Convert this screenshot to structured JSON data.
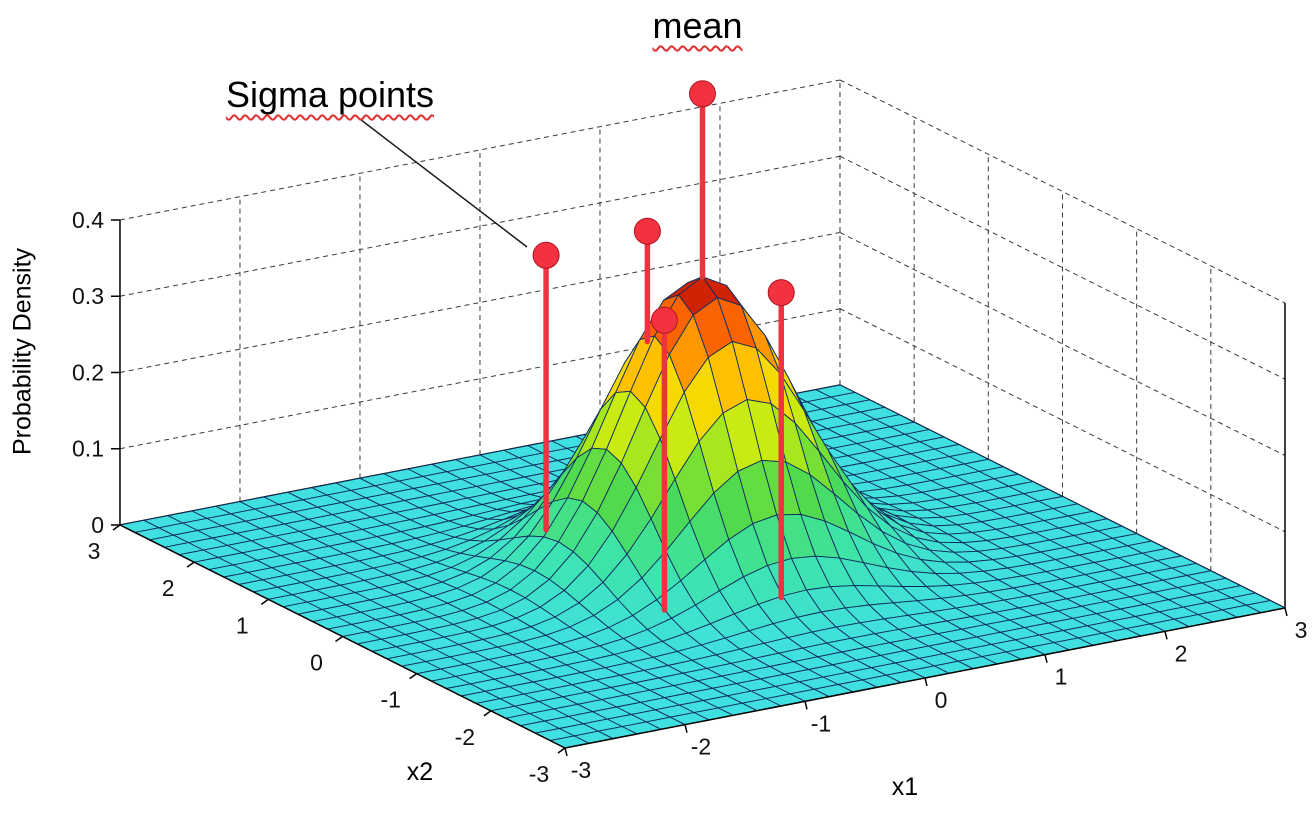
{
  "page": {
    "background": "#ffffff"
  },
  "chart_data": {
    "type": "surface",
    "xlabel": "x1",
    "ylabel": "x2",
    "zlabel": "Probability Density",
    "x_range": [
      -3,
      3
    ],
    "y_range": [
      -3,
      3
    ],
    "z_range": [
      0,
      0.4
    ],
    "x_ticks": [
      -3,
      -2,
      -1,
      0,
      1,
      2,
      3
    ],
    "y_ticks": [
      -3,
      -2,
      -1,
      0,
      1,
      2,
      3
    ],
    "z_ticks": [
      0,
      0.1,
      0.2,
      0.3,
      0.4
    ],
    "z_tick_labels": [
      "0",
      "0.1",
      "0.2",
      "0.3",
      "0.4"
    ],
    "grid_style": "dashed",
    "surface": {
      "function": "bivariate_gaussian",
      "mean": [
        0,
        0
      ],
      "sigma": 0.65,
      "peak": 0.38,
      "grid_step": 0.2,
      "edge_color": "#0f2d5c",
      "colormap": [
        [
          0.0,
          [
            64,
            224,
            224
          ]
        ],
        [
          0.18,
          [
            62,
            228,
            166
          ]
        ],
        [
          0.33,
          [
            74,
            217,
            84
          ]
        ],
        [
          0.47,
          [
            148,
            228,
            36
          ]
        ],
        [
          0.6,
          [
            236,
            240,
            4
          ]
        ],
        [
          0.73,
          [
            255,
            190,
            0
          ]
        ],
        [
          0.85,
          [
            255,
            116,
            0
          ]
        ],
        [
          0.93,
          [
            233,
            48,
            0
          ]
        ],
        [
          1.0,
          [
            158,
            10,
            10
          ]
        ]
      ]
    },
    "sigma_points": [
      {
        "name": "mean-point",
        "x": 0,
        "y": 0,
        "stem_top": 0.62,
        "stem_from_surface": true
      },
      {
        "name": "sigma-point-1",
        "x": -0.5,
        "y": 1.3,
        "stem_top": 0.36,
        "stem_from_surface": false
      },
      {
        "name": "sigma-point-2",
        "x": -0.15,
        "y": 0.5,
        "stem_top": 0.42,
        "stem_from_surface": true
      },
      {
        "name": "sigma-point-3",
        "x": 0.1,
        "y": -0.9,
        "stem_top": 0.4,
        "stem_from_surface": false
      },
      {
        "name": "sigma-point-4",
        "x": -0.75,
        "y": -0.7,
        "stem_top": 0.38,
        "stem_from_surface": false
      }
    ],
    "annotations": {
      "mean": "mean",
      "sigma_points": "Sigma points"
    },
    "colors": {
      "stem": "#ee3340",
      "marker": "#f2333f",
      "marker_edge": "#b01525",
      "grid_line": "#3a3a3a",
      "axis_line": "#000000",
      "tick_label": "#111111",
      "leader_line": "#1a1a1a",
      "annotation_underline": "#e03030",
      "flat_surface": "#40e0e0"
    }
  }
}
